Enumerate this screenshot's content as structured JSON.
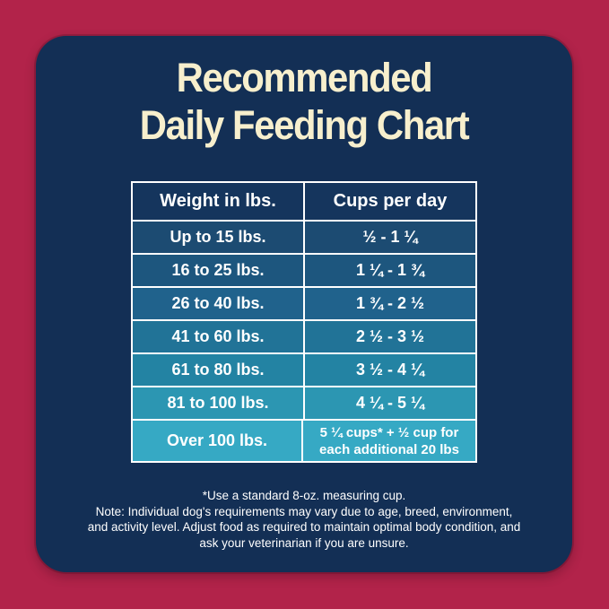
{
  "title": {
    "line1": "Recommended",
    "line2": "Daily Feeding Chart"
  },
  "chart_data": {
    "type": "table",
    "title": "Recommended Daily Feeding Chart",
    "columns": [
      "Weight in lbs.",
      "Cups per day"
    ],
    "rows": [
      [
        "Up to 15 lbs.",
        "½ - 1 ¼"
      ],
      [
        "16 to 25 lbs.",
        "1 ¼ - 1 ¾"
      ],
      [
        "26 to 40 lbs.",
        "1 ¾ - 2 ½"
      ],
      [
        "41 to 60 lbs.",
        "2 ½ - 3 ½"
      ],
      [
        "61 to 80 lbs.",
        "3 ½ - 4 ¼"
      ],
      [
        "81 to 100 lbs.",
        "4 ¼ - 5 ¼"
      ],
      [
        "Over 100 lbs.",
        "5 ¼ cups* + ½ cup for each additional 20 lbs"
      ]
    ]
  },
  "footnotes": {
    "measuring_cup": "*Use a standard 8-oz. measuring cup.",
    "note": "Note: Individual dog's requirements may vary due to age, breed, environment, and activity level. Adjust food as required to maintain optimal body condition, and ask your veterinarian if you are unsure."
  },
  "colors": {
    "background": "#B2234A",
    "panel": "#132F55",
    "title_text": "#F7EFCD",
    "table_text": "#FFFFFF",
    "grid": "#FFFFFF",
    "header_row": "#15355D",
    "row_backgrounds": [
      "#1C4B72",
      "#1D567E",
      "#20628C",
      "#217397",
      "#2383A3",
      "#2C96B2",
      "#36A9C4"
    ]
  }
}
